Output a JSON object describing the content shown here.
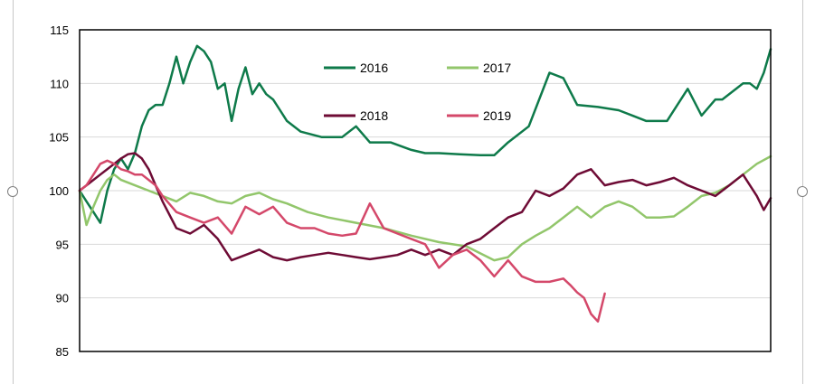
{
  "colors": {
    "2016": "#0e7a4a",
    "2017": "#92c66b",
    "2018": "#6e0b35",
    "2019": "#d4486a",
    "grid": "#d9d9d9",
    "axis": "#000000"
  },
  "chart_data": {
    "type": "line",
    "title": "",
    "xlabel": "",
    "ylabel": "",
    "ylim": [
      85,
      115
    ],
    "yticks": [
      85,
      90,
      95,
      100,
      105,
      110,
      115
    ],
    "ytick_labels": [
      "85",
      "90",
      "95",
      "100",
      "105",
      "110",
      "115"
    ],
    "x_index_range": [
      0,
      100
    ],
    "grid": "horizontal",
    "legend": {
      "placement": "top-center",
      "columns": 2
    },
    "series": [
      {
        "name": "2016",
        "color": "2016",
        "x": [
          0,
          1,
          2,
          3,
          4,
          5,
          6,
          7,
          8,
          9,
          10,
          11,
          12,
          13,
          14,
          15,
          16,
          17,
          18,
          19,
          20,
          21,
          22,
          23,
          24,
          25,
          26,
          27,
          28,
          29,
          30,
          32,
          35,
          38,
          40,
          42,
          45,
          48,
          50,
          52,
          55,
          58,
          60,
          62,
          65,
          68,
          70,
          72,
          75,
          78,
          80,
          82,
          85,
          88,
          90,
          92,
          93,
          95,
          96,
          97,
          98,
          99,
          100
        ],
        "y": [
          100,
          99,
          98,
          97,
          100,
          102,
          103,
          102,
          103.5,
          106,
          107.5,
          108,
          108,
          110,
          112.5,
          110,
          112,
          113.5,
          113,
          112,
          109.5,
          110,
          106.5,
          109.5,
          111.5,
          109,
          110,
          109,
          108.5,
          107.5,
          106.5,
          105.5,
          105,
          105,
          106,
          104.5,
          104.5,
          103.8,
          103.5,
          103.5,
          103.4,
          103.3,
          103.3,
          104.5,
          106,
          111,
          110.5,
          108,
          107.8,
          107.5,
          107,
          106.5,
          106.5,
          109.5,
          107,
          108.5,
          108.5,
          109.5,
          110,
          110,
          109.5,
          111,
          113.2
        ]
      },
      {
        "name": "2017",
        "color": "2017",
        "x": [
          0,
          1,
          2,
          3,
          4,
          5,
          6,
          8,
          10,
          12,
          14,
          16,
          18,
          20,
          22,
          24,
          26,
          28,
          30,
          33,
          36,
          40,
          44,
          48,
          52,
          56,
          60,
          62,
          64,
          66,
          68,
          70,
          72,
          74,
          76,
          78,
          80,
          82,
          84,
          86,
          88,
          90,
          92,
          94,
          96,
          98,
          100
        ],
        "y": [
          100,
          96.8,
          98.5,
          100,
          101,
          101.5,
          101,
          100.5,
          100,
          99.5,
          99,
          99.8,
          99.5,
          99,
          98.8,
          99.5,
          99.8,
          99.2,
          98.8,
          98,
          97.5,
          97,
          96.5,
          95.8,
          95.2,
          94.8,
          93.5,
          93.8,
          95,
          95.8,
          96.5,
          97.5,
          98.5,
          97.5,
          98.5,
          99,
          98.5,
          97.5,
          97.5,
          97.6,
          98.5,
          99.5,
          99.8,
          100.5,
          101.5,
          102.5,
          103.2
        ]
      },
      {
        "name": "2018",
        "color": "2018",
        "x": [
          0,
          1,
          2,
          3,
          4,
          5,
          6,
          7,
          8,
          9,
          10,
          11,
          12,
          14,
          16,
          18,
          20,
          22,
          24,
          26,
          28,
          30,
          32,
          34,
          36,
          38,
          40,
          42,
          44,
          46,
          48,
          50,
          52,
          54,
          56,
          58,
          60,
          62,
          64,
          66,
          68,
          70,
          72,
          74,
          76,
          78,
          80,
          82,
          84,
          86,
          88,
          90,
          92,
          94,
          96,
          98,
          99,
          100
        ],
        "y": [
          100,
          100.5,
          101,
          101.5,
          102,
          102.5,
          103,
          103.4,
          103.5,
          103,
          102,
          100.5,
          99,
          96.5,
          96,
          96.8,
          95.5,
          93.5,
          94,
          94.5,
          93.8,
          93.5,
          93.8,
          94,
          94.2,
          94,
          93.8,
          93.6,
          93.8,
          94,
          94.5,
          94,
          94.5,
          94,
          95,
          95.5,
          96.5,
          97.5,
          98,
          100,
          99.5,
          100.2,
          101.5,
          102,
          100.5,
          100.8,
          101,
          100.5,
          100.8,
          101.2,
          100.5,
          100,
          99.5,
          100.5,
          101.5,
          99.5,
          98.2,
          99.3
        ]
      },
      {
        "name": "2019",
        "color": "2019",
        "x": [
          0,
          1,
          2,
          3,
          4,
          5,
          6,
          7,
          8,
          9,
          10,
          11,
          12,
          14,
          16,
          18,
          20,
          22,
          24,
          26,
          28,
          30,
          32,
          34,
          36,
          38,
          40,
          42,
          44,
          46,
          48,
          50,
          52,
          54,
          56,
          58,
          60,
          62,
          64,
          66,
          68,
          70,
          71,
          72,
          73,
          74,
          75,
          76
        ],
        "y": [
          100,
          100.5,
          101.5,
          102.5,
          102.8,
          102.5,
          102,
          101.8,
          101.5,
          101.5,
          101,
          100.5,
          99.5,
          98,
          97.5,
          97,
          97.5,
          96,
          98.5,
          97.8,
          98.5,
          97,
          96.5,
          96.5,
          96,
          95.8,
          96,
          98.8,
          96.5,
          96,
          95.5,
          95,
          92.8,
          94,
          94.5,
          93.5,
          92,
          93.5,
          92,
          91.5,
          91.5,
          91.8,
          91.2,
          90.5,
          90,
          88.5,
          87.8,
          90.4
        ]
      }
    ]
  }
}
